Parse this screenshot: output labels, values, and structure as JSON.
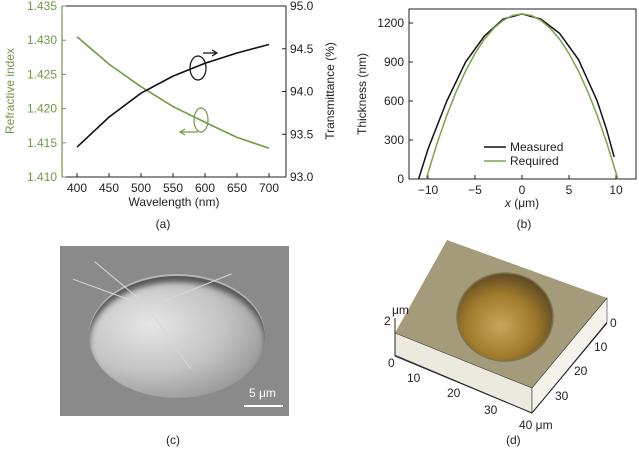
{
  "chart_data": [
    {
      "type": "line",
      "panel": "(a)",
      "xlabel": "Wavelength (nm)",
      "ylabel_left": "Refractive index",
      "ylabel_right": "Transmittance (%)",
      "xlim": [
        400,
        700
      ],
      "ylim_left": [
        1.41,
        1.435
      ],
      "ylim_right": [
        93.0,
        95.0
      ],
      "x_ticks": [
        "400",
        "450",
        "500",
        "550",
        "600",
        "650",
        "700"
      ],
      "y_ticks_left": [
        "1.410",
        "1.415",
        "1.420",
        "1.425",
        "1.430",
        "1.435"
      ],
      "y_ticks_right": [
        "93.0",
        "93.5",
        "94.0",
        "94.5",
        "95.0"
      ],
      "grid": false,
      "series": [
        {
          "name": "Refractive index",
          "axis": "left",
          "color": "#6f9a44",
          "x": [
            400,
            450,
            500,
            550,
            600,
            650,
            700
          ],
          "values": [
            1.4305,
            1.4265,
            1.4232,
            1.4203,
            1.418,
            1.4158,
            1.4142
          ]
        },
        {
          "name": "Transmittance",
          "axis": "right",
          "color": "#111111",
          "x": [
            400,
            450,
            500,
            550,
            600,
            650,
            700
          ],
          "values": [
            93.35,
            93.7,
            93.98,
            94.18,
            94.33,
            94.45,
            94.55
          ]
        }
      ]
    },
    {
      "type": "line",
      "panel": "(b)",
      "xlabel_italic": "x",
      "xlabel_unit": " (μm)",
      "ylabel": "Thickness (nm)",
      "xlim": [
        -12,
        12.5
      ],
      "ylim": [
        0,
        1300
      ],
      "x_ticks": [
        "−10",
        "−5",
        "0",
        "5",
        "10"
      ],
      "x_tick_values": [
        -10,
        -5,
        0,
        5,
        10
      ],
      "y_ticks": [
        "0",
        "300",
        "600",
        "900",
        "1200"
      ],
      "y_tick_values": [
        0,
        300,
        600,
        900,
        1200
      ],
      "legend": "bottom-center",
      "grid": false,
      "series": [
        {
          "name": "Measured",
          "color": "#111111",
          "x": [
            -11,
            -10,
            -8,
            -6,
            -4,
            -2,
            -1,
            0,
            1,
            2,
            4,
            6,
            8,
            9,
            9.8
          ],
          "values": [
            0,
            230,
            600,
            900,
            1100,
            1230,
            1250,
            1270,
            1250,
            1230,
            1120,
            920,
            600,
            380,
            170
          ]
        },
        {
          "name": "Required",
          "color": "#7aa54a",
          "x": [
            -10.2,
            -9,
            -8,
            -7,
            -6,
            -5,
            -4,
            -3,
            -2,
            -1,
            0,
            1,
            2,
            3,
            4,
            5,
            6,
            7,
            8,
            9,
            10.2
          ],
          "values": [
            0,
            282,
            489,
            672,
            831,
            965,
            1075,
            1160,
            1221,
            1258,
            1270,
            1258,
            1221,
            1160,
            1075,
            965,
            831,
            672,
            489,
            282,
            0
          ]
        }
      ]
    }
  ],
  "panel_c": {
    "caption": "(c)",
    "scale_bar": "5 μm"
  },
  "panel_d": {
    "caption": "(d)",
    "z_unit": "μm",
    "z_tick": "2",
    "x_ticks": [
      "0",
      "10",
      "20",
      "30",
      "40 μm"
    ],
    "y_ticks": [
      "0",
      "10",
      "20",
      "30"
    ]
  }
}
